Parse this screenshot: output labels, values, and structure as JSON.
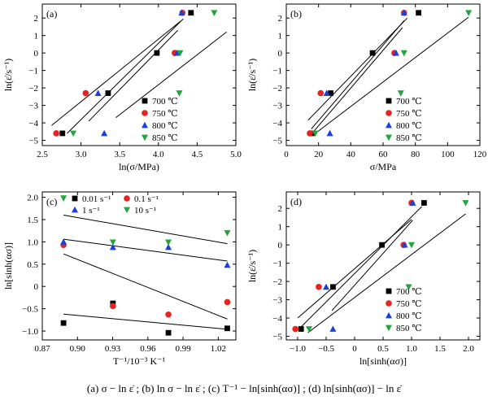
{
  "caption": "(a)  σ − ln ε̇ ; (b)  ln σ − ln ε̇ ; (c)  T⁻¹ − ln[sinh(ασ)] ; (d)  ln[sinh(ασ)] − ln ε̇",
  "colors": {
    "s700": "#000000",
    "s750": "#e8231f",
    "s800": "#1a3fe0",
    "s850": "#22a63a"
  },
  "chart_data": [
    {
      "type": "scatter",
      "panel_label": "(a)",
      "xlabel": "ln(σ/MPa)",
      "ylabel": "ln(ε̇/s⁻¹)",
      "xlim": [
        2.5,
        5.0
      ],
      "ylim": [
        -5.3,
        2.8
      ],
      "xticks": [
        2.5,
        3.0,
        3.5,
        4.0,
        4.5,
        5.0
      ],
      "xtick_labels": [
        "2.5",
        "3.0",
        "3.5",
        "4.0",
        "4.5",
        "5.0"
      ],
      "yticks": [
        -5,
        -4,
        -3,
        -2,
        -1,
        0,
        1,
        2
      ],
      "ytick_labels": [
        "−5",
        "−4",
        "−3",
        "−2",
        "−1",
        "0",
        "1",
        "2"
      ],
      "legend_position": "bottom-right",
      "series": [
        {
          "name": "700 ℃",
          "marker": "square",
          "color": "#000000",
          "points": [
            [
              2.76,
              -4.6
            ],
            [
              3.35,
              -2.3
            ],
            [
              3.98,
              0.0
            ],
            [
              4.42,
              2.3
            ]
          ],
          "fit": [
            [
              2.62,
              -4.15
            ],
            [
              4.28,
              1.8
            ]
          ]
        },
        {
          "name": "750 ℃",
          "marker": "circle",
          "color": "#e8231f",
          "points": [
            [
              2.68,
              -4.6
            ],
            [
              3.06,
              -2.3
            ],
            [
              4.21,
              0.0
            ],
            [
              4.31,
              2.3
            ]
          ],
          "fit": [
            [
              2.82,
              -4.6
            ],
            [
              4.32,
              1.95
            ]
          ]
        },
        {
          "name": "800 ℃",
          "marker": "triangle-up",
          "color": "#1a3fe0",
          "points": [
            [
              3.3,
              -4.6
            ],
            [
              3.22,
              -2.3
            ],
            [
              4.24,
              0.0
            ],
            [
              4.3,
              2.3
            ]
          ],
          "fit": [
            [
              3.1,
              -3.9
            ],
            [
              4.25,
              1.3
            ]
          ]
        },
        {
          "name": "850 ℃",
          "marker": "triangle-down",
          "color": "#22a63a",
          "points": [
            [
              2.9,
              -4.6
            ],
            [
              4.27,
              -2.3
            ],
            [
              4.28,
              0.0
            ],
            [
              4.72,
              2.3
            ]
          ],
          "fit": [
            [
              3.45,
              -3.7
            ],
            [
              4.88,
              1.2
            ]
          ]
        }
      ]
    },
    {
      "type": "scatter",
      "panel_label": "(b)",
      "xlabel": "σ/MPa",
      "ylabel": "ln(ε̇/s⁻¹)",
      "xlim": [
        0,
        120
      ],
      "ylim": [
        -5.3,
        2.8
      ],
      "xticks": [
        0,
        20,
        40,
        60,
        80,
        100,
        120
      ],
      "xtick_labels": [
        "0",
        "20",
        "40",
        "60",
        "80",
        "100",
        "120"
      ],
      "yticks": [
        -5,
        -4,
        -3,
        -2,
        -1,
        0,
        1,
        2
      ],
      "ytick_labels": [
        "−5",
        "−4",
        "−3",
        "−2",
        "−1",
        "0",
        "1",
        "2"
      ],
      "legend_position": "bottom-right",
      "series": [
        {
          "name": "700 ℃",
          "marker": "square",
          "color": "#000000",
          "points": [
            [
              15.8,
              -4.6
            ],
            [
              27.5,
              -2.3
            ],
            [
              53.5,
              0.0
            ],
            [
              82,
              2.3
            ]
          ],
          "fit": [
            [
              13.5,
              -3.85
            ],
            [
              75,
              2.0
            ]
          ]
        },
        {
          "name": "750 ℃",
          "marker": "circle",
          "color": "#e8231f",
          "points": [
            [
              14.6,
              -4.6
            ],
            [
              21.3,
              -2.3
            ],
            [
              67,
              0.0
            ],
            [
              73,
              2.3
            ]
          ],
          "fit": [
            [
              15.5,
              -4.35
            ],
            [
              73,
              1.85
            ]
          ]
        },
        {
          "name": "800 ℃",
          "marker": "triangle-up",
          "color": "#1a3fe0",
          "points": [
            [
              27,
              -4.6
            ],
            [
              25,
              -2.3
            ],
            [
              68,
              0.0
            ],
            [
              73,
              2.3
            ]
          ],
          "fit": [
            [
              16,
              -4.6
            ],
            [
              72,
              1.45
            ]
          ]
        },
        {
          "name": "850 ℃",
          "marker": "triangle-down",
          "color": "#22a63a",
          "points": [
            [
              18,
              -4.6
            ],
            [
              71,
              -2.3
            ],
            [
              73,
              0.0
            ],
            [
              113,
              2.3
            ]
          ],
          "fit": [
            [
              18,
              -4.6
            ],
            [
              113,
              2.05
            ]
          ]
        }
      ]
    },
    {
      "type": "scatter",
      "panel_label": "(c)",
      "xlabel": "T⁻¹/10⁻³ K⁻¹",
      "ylabel": "ln[sinh(ασ)]",
      "xlim": [
        0.87,
        1.035
      ],
      "ylim": [
        -1.2,
        2.12
      ],
      "xticks": [
        0.87,
        0.9,
        0.93,
        0.96,
        0.99,
        1.02
      ],
      "xtick_labels": [
        "0.87",
        "0.90",
        "0.93",
        "0.96",
        "0.99",
        "1.02"
      ],
      "yticks": [
        -1.0,
        -0.5,
        0.0,
        0.5,
        1.0,
        1.5,
        2.0
      ],
      "ytick_labels": [
        "−1.0",
        "−0.5",
        "0",
        "0.5",
        "1.0",
        "1.5",
        "2.0"
      ],
      "legend_position": "top",
      "series": [
        {
          "name": "0.01 s⁻¹",
          "marker": "square",
          "color": "#000000",
          "points": [
            [
              0.8881,
              -0.82
            ],
            [
              0.9302,
              -0.38
            ],
            [
              0.9775,
              -1.04
            ],
            [
              1.0277,
              -0.94
            ]
          ],
          "fit": [
            [
              0.8881,
              -0.62
            ],
            [
              1.0277,
              -0.96
            ]
          ]
        },
        {
          "name": "0.1 s⁻¹",
          "marker": "circle",
          "color": "#e8231f",
          "points": [
            [
              0.8881,
              0.93
            ],
            [
              0.9302,
              -0.44
            ],
            [
              0.9775,
              -0.63
            ],
            [
              1.0277,
              -0.35
            ]
          ],
          "fit": [
            [
              0.8881,
              0.73
            ],
            [
              1.0277,
              -0.73
            ]
          ]
        },
        {
          "name": "1 s⁻¹",
          "marker": "triangle-up",
          "color": "#1a3fe0",
          "points": [
            [
              0.8881,
              1.0
            ],
            [
              0.9302,
              0.88
            ],
            [
              0.9775,
              0.88
            ],
            [
              1.0277,
              0.48
            ]
          ],
          "fit": [
            [
              0.8881,
              1.06
            ],
            [
              1.0277,
              0.57
            ]
          ]
        },
        {
          "name": "10 s⁻¹",
          "marker": "triangle-down",
          "color": "#22a63a",
          "points": [
            [
              0.8881,
              1.98
            ],
            [
              0.9302,
              0.99
            ],
            [
              0.9775,
              0.99
            ],
            [
              1.0277,
              1.2
            ]
          ],
          "fit": [
            [
              0.8881,
              1.6
            ],
            [
              1.0277,
              0.96
            ]
          ]
        }
      ]
    },
    {
      "type": "scatter",
      "panel_label": "(d)",
      "xlabel": "ln[sinh(ασ)]",
      "ylabel": "ln(ε̇/s⁻¹)",
      "xlim": [
        -1.2,
        2.2
      ],
      "ylim": [
        -5.2,
        2.9
      ],
      "xticks": [
        -1.0,
        -0.5,
        0.0,
        0.5,
        1.0,
        1.5,
        2.0
      ],
      "xtick_labels": [
        "−1.0",
        "−0.5",
        "0",
        "0.5",
        "1.0",
        "1.5",
        "2.0"
      ],
      "yticks": [
        -5,
        -4,
        -3,
        -2,
        -1,
        0,
        1,
        2
      ],
      "ytick_labels": [
        "−5",
        "−4",
        "−3",
        "−2",
        "−1",
        "0",
        "1",
        "2"
      ],
      "legend_position": "bottom-right",
      "series": [
        {
          "name": "700 ℃",
          "marker": "square",
          "color": "#000000",
          "points": [
            [
              -0.94,
              -4.6
            ],
            [
              -0.38,
              -2.3
            ],
            [
              0.48,
              0.0
            ],
            [
              1.22,
              2.3
            ]
          ],
          "fit": [
            [
              -1.0,
              -4.0
            ],
            [
              1.0,
              1.4
            ]
          ]
        },
        {
          "name": "750 ℃",
          "marker": "circle",
          "color": "#e8231f",
          "points": [
            [
              -1.04,
              -4.6
            ],
            [
              -0.63,
              -2.3
            ],
            [
              0.86,
              0.0
            ],
            [
              1.0,
              2.3
            ]
          ],
          "fit": [
            [
              -0.96,
              -4.55
            ],
            [
              1.18,
              2.1
            ]
          ]
        },
        {
          "name": "800 ℃",
          "marker": "triangle-up",
          "color": "#1a3fe0",
          "points": [
            [
              -0.38,
              -4.6
            ],
            [
              -0.5,
              -2.3
            ],
            [
              0.88,
              0.0
            ],
            [
              1.02,
              2.3
            ]
          ],
          "fit": [
            [
              -0.4,
              -3.6
            ],
            [
              1.02,
              1.35
            ]
          ]
        },
        {
          "name": "850 ℃",
          "marker": "triangle-down",
          "color": "#22a63a",
          "points": [
            [
              -0.8,
              -4.6
            ],
            [
              0.95,
              -2.3
            ],
            [
              1.0,
              0.0
            ],
            [
              1.95,
              2.3
            ]
          ],
          "fit": [
            [
              -0.82,
              -4.8
            ],
            [
              1.95,
              1.7
            ]
          ]
        }
      ]
    }
  ]
}
